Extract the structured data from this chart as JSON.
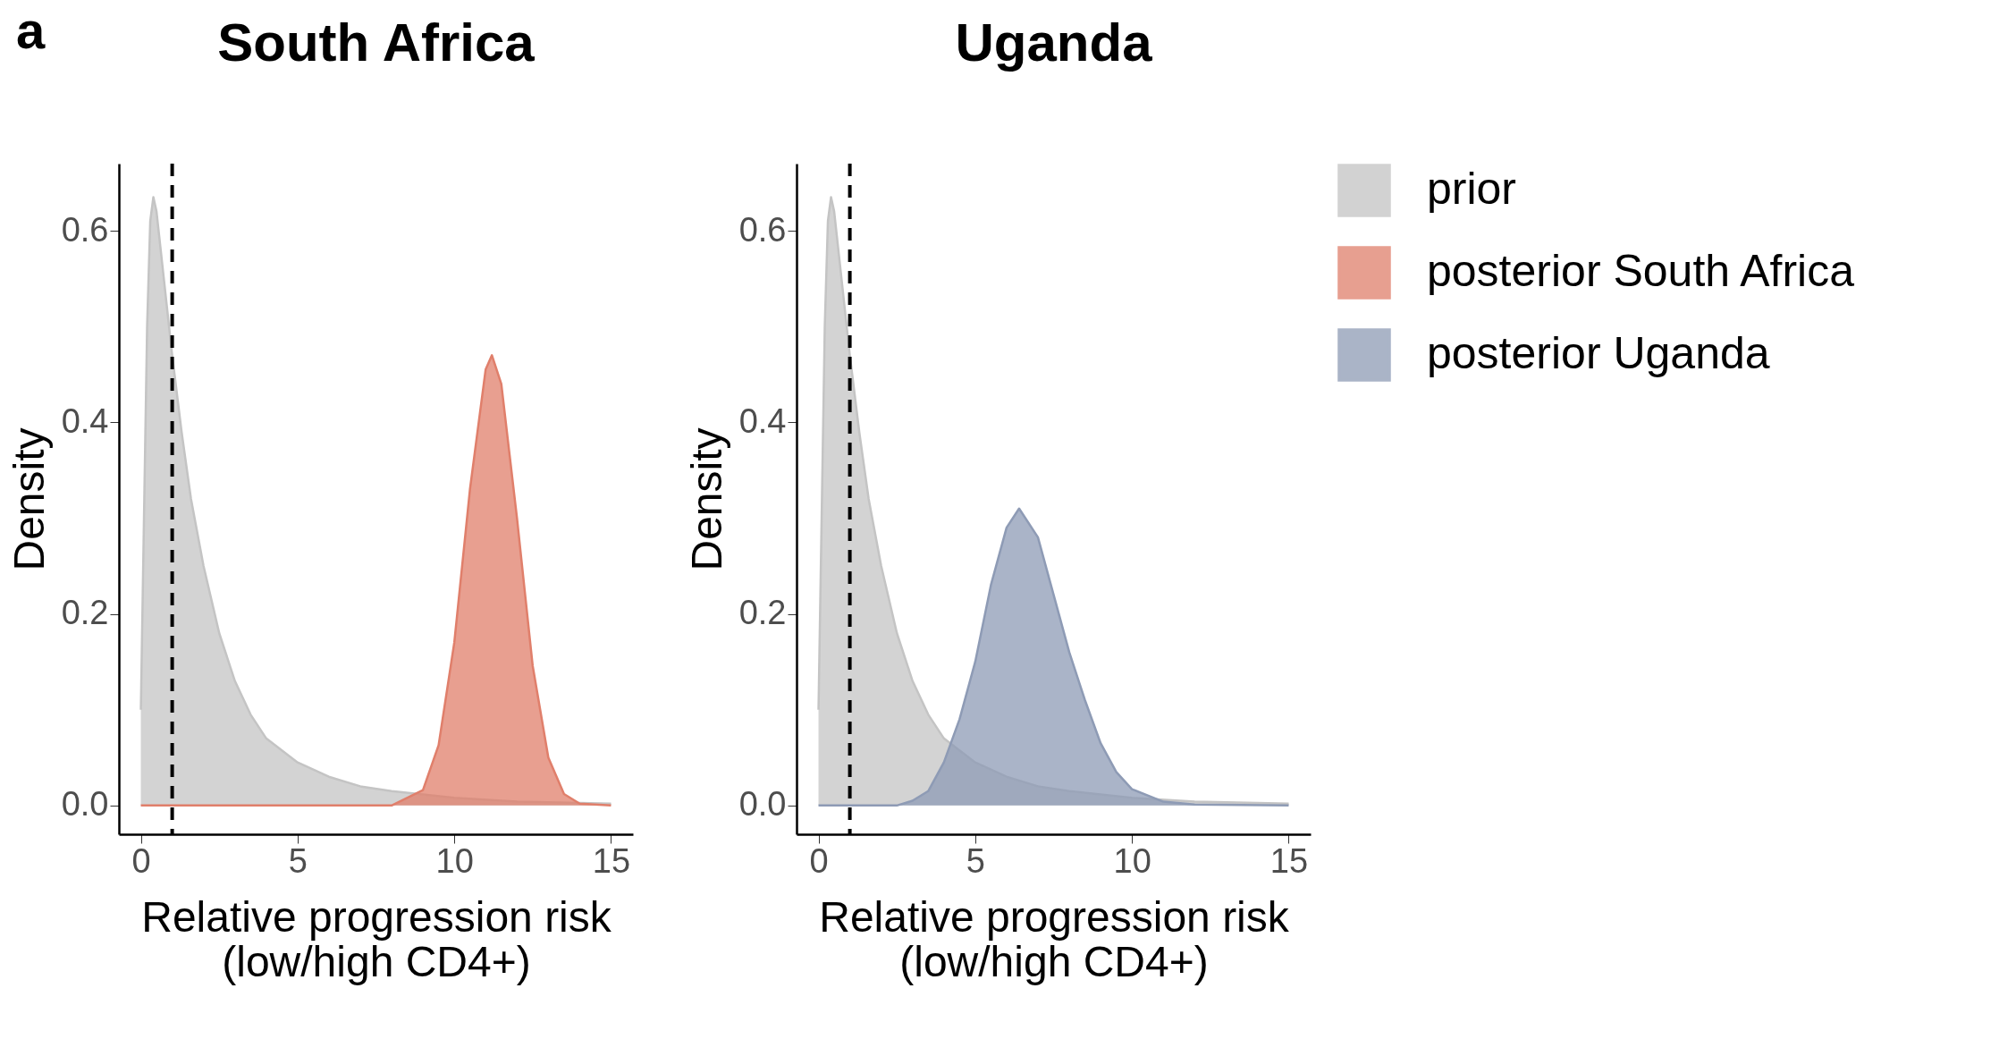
{
  "chart_data": [
    {
      "type": "area",
      "title": "South Africa",
      "xlabel": "Relative progression risk\n(low/high CD4+)",
      "ylabel": "Density",
      "annotations": [
        "a"
      ],
      "xlim": [
        -0.7,
        15.7
      ],
      "ylim": [
        -0.03,
        0.67
      ],
      "xticks": [
        0,
        5,
        10,
        15
      ],
      "yticks": [
        {
          "value": 0,
          "label": "0.0"
        },
        0.2,
        0.4,
        0.6
      ],
      "grid": false,
      "legend": "right",
      "ref_lines": [
        {
          "axis": "x",
          "value": 1,
          "color": "#000000",
          "line_style": "dashed"
        }
      ],
      "series": [
        {
          "name": "prior",
          "color": "#c4c4c4",
          "x": [
            0,
            0.1,
            0.2,
            0.3,
            0.4,
            0.5,
            0.7,
            1,
            1.3,
            1.6,
            2,
            2.5,
            3,
            3.5,
            4,
            5,
            6,
            7,
            8,
            10,
            12,
            15
          ],
          "values": [
            0.1,
            0.3,
            0.5,
            0.61,
            0.635,
            0.62,
            0.56,
            0.47,
            0.39,
            0.32,
            0.25,
            0.18,
            0.13,
            0.095,
            0.07,
            0.045,
            0.03,
            0.02,
            0.015,
            0.008,
            0.004,
            0.002
          ]
        },
        {
          "name": "posterior South Africa",
          "color": "#e07f6b",
          "x": [
            0,
            8,
            9,
            9.5,
            10,
            10.5,
            11,
            11.2,
            11.5,
            12,
            12.5,
            13,
            13.5,
            14,
            15
          ],
          "values": [
            0,
            0,
            0.016,
            0.063,
            0.17,
            0.33,
            0.455,
            0.47,
            0.44,
            0.3,
            0.146,
            0.05,
            0.012,
            0.002,
            0
          ]
        }
      ]
    },
    {
      "type": "area",
      "title": "Uganda",
      "xlabel": "Relative progression risk\n(low/high CD4+)",
      "ylabel": "Density",
      "xlim": [
        -0.7,
        15.7
      ],
      "ylim": [
        -0.03,
        0.67
      ],
      "xticks": [
        0,
        5,
        10,
        15
      ],
      "yticks": [
        {
          "value": 0,
          "label": "0.0"
        },
        0.2,
        0.4,
        0.6
      ],
      "grid": false,
      "legend": "right",
      "ref_lines": [
        {
          "axis": "x",
          "value": 1,
          "color": "#000000",
          "line_style": "dashed"
        }
      ],
      "series": [
        {
          "name": "prior",
          "color": "#c4c4c4",
          "x": [
            0,
            0.1,
            0.2,
            0.3,
            0.4,
            0.5,
            0.7,
            1,
            1.3,
            1.6,
            2,
            2.5,
            3,
            3.5,
            4,
            5,
            6,
            7,
            8,
            10,
            12,
            15
          ],
          "values": [
            0.1,
            0.3,
            0.5,
            0.61,
            0.635,
            0.62,
            0.56,
            0.47,
            0.39,
            0.32,
            0.25,
            0.18,
            0.13,
            0.095,
            0.07,
            0.045,
            0.03,
            0.02,
            0.015,
            0.008,
            0.004,
            0.002
          ]
        },
        {
          "name": "posterior Uganda",
          "color": "#8e9bb5",
          "x": [
            0,
            2.5,
            3,
            3.5,
            4,
            4.5,
            5,
            5.5,
            6,
            6.4,
            7,
            7.5,
            8,
            8.5,
            9,
            9.5,
            10,
            11,
            12,
            15
          ],
          "values": [
            0,
            0,
            0.005,
            0.015,
            0.045,
            0.09,
            0.15,
            0.23,
            0.29,
            0.31,
            0.28,
            0.22,
            0.16,
            0.11,
            0.065,
            0.035,
            0.017,
            0.004,
            0.001,
            0
          ]
        }
      ]
    }
  ]
}
